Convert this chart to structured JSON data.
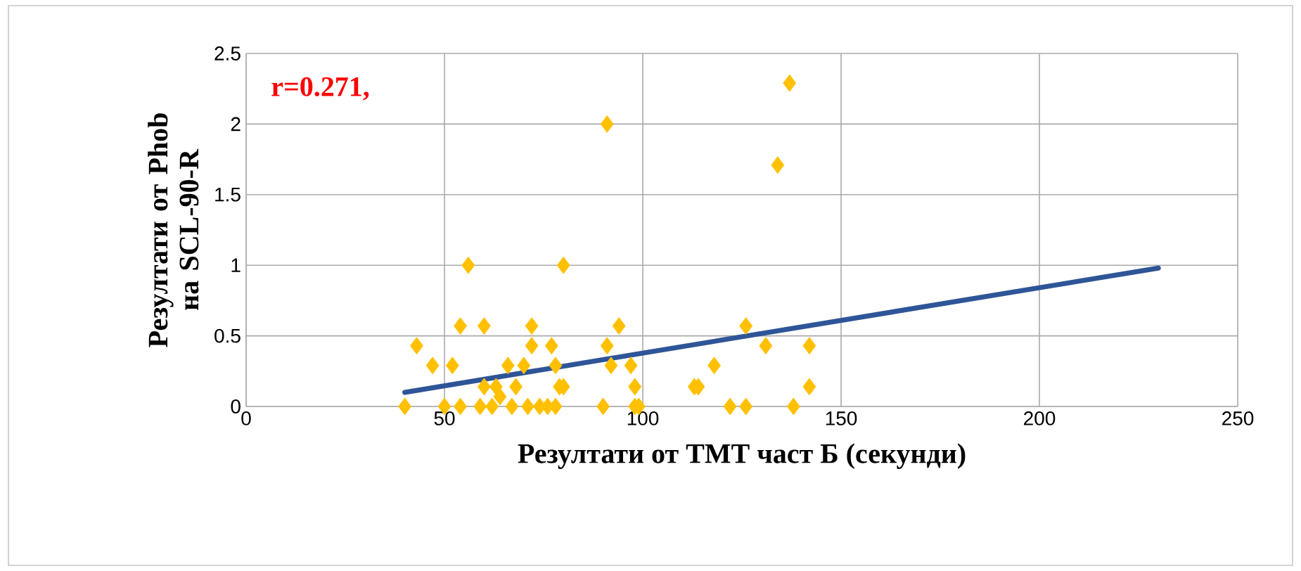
{
  "chart_data": {
    "type": "scatter",
    "xlabel": "Резултати от TMT част Б (секунди)",
    "ylabel": "Резултати от Phob на SCL-90-R",
    "annotations": [
      "r=0.271,"
    ],
    "xlim": [
      0,
      250
    ],
    "xticks": [
      0,
      50,
      100,
      150,
      200,
      250
    ],
    "ylim": [
      0,
      2.5
    ],
    "yticks": [
      0,
      0.5,
      1,
      1.5,
      2,
      2.5
    ],
    "grid": true,
    "series": [
      {
        "type": "scatter",
        "color": "#ffc000",
        "marker": "diamond",
        "x": [
          40,
          43,
          47,
          50,
          52,
          54,
          54,
          56,
          59,
          60,
          60,
          62,
          63,
          64,
          66,
          67,
          68,
          70,
          71,
          72,
          72,
          74,
          76,
          77,
          78,
          78,
          79,
          80,
          80,
          90,
          91,
          91,
          92,
          94,
          97,
          98,
          98,
          99,
          113,
          114,
          118,
          122,
          126,
          126,
          131,
          134,
          137,
          138,
          142,
          142
        ],
        "values": [
          0,
          0.43,
          0.29,
          0,
          0.29,
          0.57,
          0,
          1.0,
          0,
          0.57,
          0.14,
          0,
          0.14,
          0.07,
          0.29,
          0,
          0.14,
          0.29,
          0,
          0.57,
          0.43,
          0,
          0,
          0.43,
          0,
          0.29,
          0.14,
          1.0,
          0.14,
          0,
          0.43,
          2.0,
          0.29,
          0.57,
          0.29,
          0.14,
          0,
          0,
          0.14,
          0.14,
          0.29,
          0,
          0.57,
          0,
          0.43,
          1.71,
          2.29,
          0,
          0.43,
          0.14
        ]
      },
      {
        "type": "line",
        "color": "#2e5597",
        "marker": "none",
        "x": [
          40,
          230
        ],
        "values": [
          0.1,
          0.98
        ]
      }
    ]
  }
}
